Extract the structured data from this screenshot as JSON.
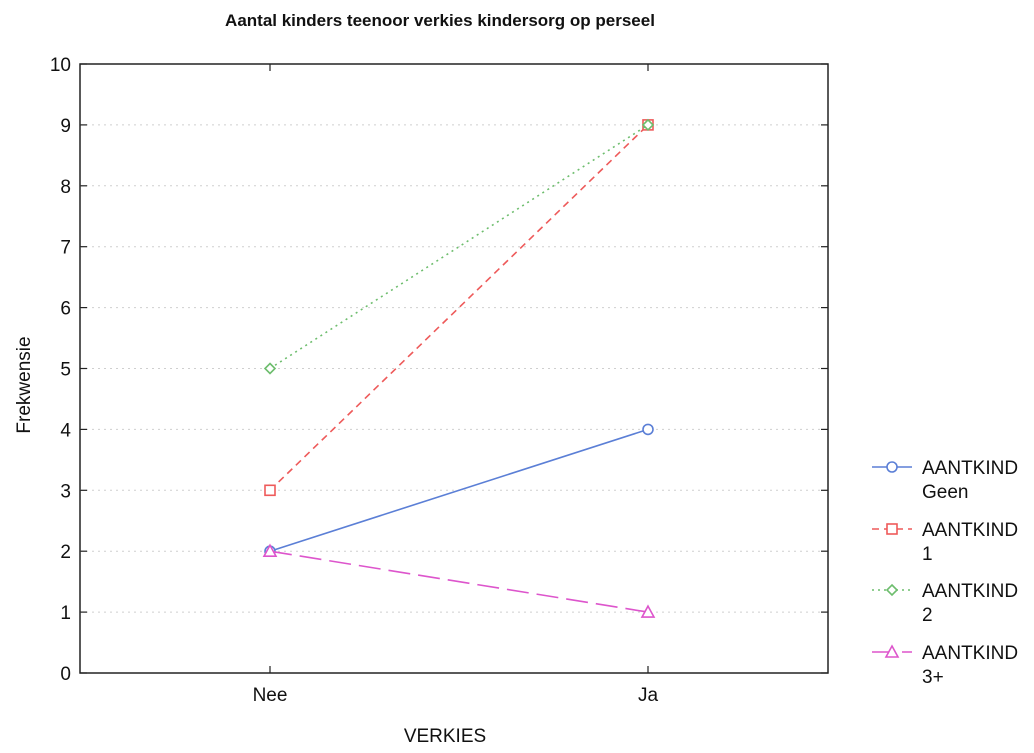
{
  "chart_data": {
    "type": "line",
    "title": "Aantal kinders teenoor verkies kindersorg op perseel",
    "xlabel": "VERKIES",
    "ylabel": "Frekwensie",
    "categories": [
      "Nee",
      "Ja"
    ],
    "ylim": [
      0,
      10
    ],
    "yticks": [
      0,
      1,
      2,
      3,
      4,
      5,
      6,
      7,
      8,
      9,
      10
    ],
    "grid": true,
    "legend_position": "right",
    "series": [
      {
        "name": "AANTKIND Geen",
        "legend_lines": [
          "AANTKIND",
          "Geen"
        ],
        "values": [
          2,
          4
        ],
        "color": "#5b7fd6",
        "dash": "solid",
        "marker": "circle"
      },
      {
        "name": "AANTKIND 1",
        "legend_lines": [
          "AANTKIND",
          "1"
        ],
        "values": [
          3,
          9
        ],
        "color": "#ee5a5a",
        "dash": "dashed",
        "marker": "square"
      },
      {
        "name": "AANTKIND 2",
        "legend_lines": [
          "AANTKIND",
          "2"
        ],
        "values": [
          5,
          9
        ],
        "color": "#6dbd6d",
        "dash": "dotted",
        "marker": "diamond"
      },
      {
        "name": "AANTKIND 3+",
        "legend_lines": [
          "AANTKIND",
          "3+"
        ],
        "values": [
          2,
          1
        ],
        "color": "#dd55cc",
        "dash": "longdash",
        "marker": "triangle"
      }
    ]
  }
}
